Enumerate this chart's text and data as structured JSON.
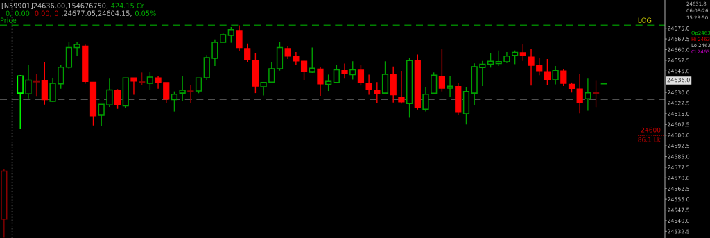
{
  "chart_data": {
    "type": "candlestick",
    "categories": [
      null,
      null,
      null,
      null,
      null,
      null,
      null,
      null,
      null,
      null,
      null,
      null,
      null,
      null,
      null,
      null,
      null,
      null,
      null,
      null,
      null,
      null,
      null,
      null,
      null,
      null,
      null,
      null,
      null,
      null,
      null,
      null,
      null,
      null,
      null,
      null,
      null,
      null,
      null,
      null,
      null,
      null,
      null,
      null,
      null,
      null,
      null,
      null,
      null,
      null,
      null,
      null,
      null,
      null,
      null,
      null,
      null,
      null,
      null,
      null,
      null,
      null,
      null,
      null,
      null,
      null,
      null,
      null,
      null,
      null,
      null,
      null,
      null,
      null,
      null,
      null,
      null,
      null,
      null,
      null,
      null,
      null
    ],
    "ohlc": [
      [
        24541.1,
        24576.5,
        24528,
        24574.8
      ],
      null,
      [
        24629.5,
        24642.1,
        24604.2,
        24641.6
      ],
      [
        24629.0,
        24649.0,
        24625.8,
        24638.6
      ],
      [
        24637.6,
        24642.9,
        24627.0,
        24637.4
      ],
      [
        24638.1,
        24651.0,
        24621.4,
        24625.0
      ],
      [
        24623.7,
        24640.0,
        24623.4,
        24636.4
      ],
      [
        24636.0,
        24649.0,
        24632.6,
        24647.7
      ],
      [
        24647.7,
        24665.4,
        24646.1,
        24661.5
      ],
      [
        24661.5,
        24665.1,
        24655.9,
        24663.6
      ],
      [
        24662.4,
        24663.5,
        24636.1,
        24637.7
      ],
      [
        24637.1,
        24637.1,
        24606.8,
        24613.6
      ],
      [
        24614.0,
        24621.7,
        24606.3,
        24621.7
      ],
      [
        24621.2,
        24639.6,
        24619.8,
        24631.8
      ],
      [
        24631.5,
        24632.3,
        24618.5,
        24621.2
      ],
      [
        24620.5,
        24640.1,
        24619.3,
        24640.1
      ],
      [
        24640.1,
        24640.1,
        24628.3,
        24638.0
      ],
      [
        24637.4,
        24644.0,
        24635.1,
        24637.0
      ],
      [
        24636.4,
        24644.2,
        24631.5,
        24640.8
      ],
      [
        24640.1,
        24641.7,
        24632.6,
        24637.2
      ],
      [
        24636.9,
        24636.9,
        24622.3,
        24625.3
      ],
      [
        24625.0,
        24630.7,
        24616.6,
        24628.7
      ],
      [
        24629.5,
        24641.6,
        24623.9,
        24631.5
      ],
      [
        24631.0,
        24635.2,
        24622.4,
        24630.7
      ],
      [
        24631.0,
        24640.1,
        24629.4,
        24640.1
      ],
      [
        24640.3,
        24656.2,
        24638.3,
        24654.4
      ],
      [
        24653.9,
        24667.2,
        24648.5,
        24665.1
      ],
      [
        24665.1,
        24671.6,
        24665.1,
        24670.5
      ],
      [
        24670.0,
        24675.8,
        24664.8,
        24674.0
      ],
      [
        24673.4,
        24677.05,
        24659.1,
        24661.5
      ],
      [
        24660.7,
        24664.3,
        24651.3,
        24652.9
      ],
      [
        24652.1,
        24657.5,
        24629.5,
        24634.4
      ],
      [
        24633.9,
        24637.0,
        24627.8,
        24637.0
      ],
      [
        24637.2,
        24651.5,
        24636.6,
        24646.6
      ],
      [
        24646.6,
        24665.1,
        24645.3,
        24661.4
      ],
      [
        24660.7,
        24662.7,
        24653.4,
        24655.5
      ],
      [
        24655.0,
        24658.3,
        24649.4,
        24652.1
      ],
      [
        24651.8,
        24652.1,
        24638.8,
        24644.5
      ],
      [
        24644.2,
        24661.5,
        24643.7,
        24646.9
      ],
      [
        24646.4,
        24647.7,
        24627.4,
        24636.0
      ],
      [
        24635.6,
        24642.5,
        24631.0,
        24637.7
      ],
      [
        24637.0,
        24649.4,
        24637.0,
        24645.9
      ],
      [
        24645.3,
        24650.2,
        24639.6,
        24643.4
      ],
      [
        24642.5,
        24651.8,
        24639.1,
        24645.9
      ],
      [
        24645.6,
        24649.0,
        24634.8,
        24636.8
      ],
      [
        24636.0,
        24642.4,
        24628.3,
        24632.0
      ],
      [
        24631.5,
        24637.2,
        24622.6,
        24629.5
      ],
      [
        24629.5,
        24651.8,
        24628.7,
        24642.7
      ],
      [
        24642.4,
        24648.2,
        24622.9,
        24628.3
      ],
      [
        24626.3,
        24644.8,
        24622.1,
        24623.4
      ],
      [
        24622.1,
        24653.9,
        24612.3,
        24652.3
      ],
      [
        24652.1,
        24656.6,
        24618.0,
        24619.3
      ],
      [
        24618.2,
        24633.9,
        24616.6,
        24628.7
      ],
      [
        24629.4,
        24644.0,
        24629.4,
        24642.1
      ],
      [
        24641.3,
        24660.2,
        24630.7,
        24633.0
      ],
      [
        24633.0,
        24641.7,
        24626.6,
        24634.3
      ],
      [
        24634.0,
        24636.7,
        24614.0,
        24616.1
      ],
      [
        24614.9,
        24633.6,
        24607.5,
        24630.7
      ],
      [
        24629.5,
        24650.4,
        24621.3,
        24648.0
      ],
      [
        24647.4,
        24652.1,
        24634.4,
        24649.7
      ],
      [
        24649.7,
        24657.5,
        24647.4,
        24651.8
      ],
      [
        24650.2,
        24659.4,
        24648.6,
        24651.6
      ],
      [
        24651.5,
        24658.3,
        24650.6,
        24655.5
      ],
      [
        24656.0,
        24659.4,
        24649.8,
        24658.0
      ],
      [
        24657.8,
        24663.6,
        24652.1,
        24655.8
      ],
      [
        24654.7,
        24660.4,
        24634.8,
        24649.0
      ],
      [
        24648.9,
        24654.2,
        24642.1,
        24644.8
      ],
      [
        24644.0,
        24653.4,
        24635.4,
        24639.1
      ],
      [
        24638.8,
        24648.5,
        24635.6,
        24645.3
      ],
      [
        24645.0,
        24646.6,
        24634.4,
        24636.4
      ],
      [
        24635.6,
        24636.9,
        24629.9,
        24632.8
      ],
      [
        24632.3,
        24642.9,
        24615.3,
        24622.9
      ],
      [
        24625.5,
        24639.6,
        24617.2,
        24629.7
      ],
      [
        24629.7,
        24638.1,
        24619.7,
        24629.4
      ],
      [
        24636.0,
        24636.0,
        24636.0,
        24636.0
      ],
      null,
      null,
      null,
      null,
      null,
      null,
      null
    ],
    "colors": [
      "#8b0000",
      null,
      "#00ff00",
      "#00a000",
      "#8b0000",
      "#ff0000",
      "#00a000",
      "#00a000",
      "#00a000",
      "#00a000",
      "#ff0000",
      "#ff0000",
      "#00a000",
      "#00a000",
      "#ff0000",
      "#00a000",
      "#ff0000",
      "#8b0000",
      "#00a000",
      "#ff0000",
      "#ff0000",
      "#00a000",
      "#00a000",
      "#8b0000",
      "#00a000",
      "#00a000",
      "#00a000",
      "#00a000",
      "#00a000",
      "#ff0000",
      "#ff0000",
      "#ff0000",
      "#00a000",
      "#00a000",
      "#00a000",
      "#ff0000",
      "#ff0000",
      "#ff0000",
      "#00a000",
      "#ff0000",
      "#00a000",
      "#00a000",
      "#ff0000",
      "#00a000",
      "#ff0000",
      "#ff0000",
      "#ff0000",
      "#00a000",
      "#ff0000",
      "#ff0000",
      "#00a000",
      "#ff0000",
      "#00a000",
      "#00a000",
      "#ff0000",
      "#00a000",
      "#ff0000",
      "#00a000",
      "#00a000",
      "#00a000",
      "#00a000",
      "#00a000",
      "#00a000",
      "#00a000",
      "#ff0000",
      "#ff0000",
      "#ff0000",
      "#ff0000",
      "#00a000",
      "#ff0000",
      "#ff0000",
      "#ff0000",
      "#00a000",
      "#8b0000",
      "#00a000",
      null,
      null,
      null,
      null,
      null,
      null,
      null
    ],
    "ylim": [
      24527.8,
      24694.8
    ],
    "yticks": [
      {
        "value": 24532.5,
        "label": "24532.5"
      },
      {
        "value": 24540,
        "label": "24540.0"
      },
      {
        "value": 24547.5,
        "label": "24547.5"
      },
      {
        "value": 24555,
        "label": "24555.0"
      },
      {
        "value": 24562.5,
        "label": "24562.5"
      },
      {
        "value": 24570,
        "label": "24570.0"
      },
      {
        "value": 24577.5,
        "label": "24577.5"
      },
      {
        "value": 24585,
        "label": "24585.0"
      },
      {
        "value": 24592.5,
        "label": "24592.5"
      },
      {
        "value": 24600,
        "label": "24600.0"
      },
      {
        "value": 24607.5,
        "label": "24607.5"
      },
      {
        "value": 24615,
        "label": "24615.0"
      },
      {
        "value": 24622.5,
        "label": "24622.5"
      },
      {
        "value": 24630,
        "label": "24630.0"
      },
      {
        "value": 24645,
        "label": "24645.0"
      },
      {
        "value": 24652.5,
        "label": "24652.5"
      },
      {
        "value": 24660,
        "label": "24660.0"
      },
      {
        "value": 24667.5,
        "label": "24667.5"
      },
      {
        "value": 24675,
        "label": "24675.0"
      }
    ],
    "tick_labels": "y",
    "grid": false,
    "ref_lines": [
      {
        "axis": "y",
        "value": 24677.05,
        "color": "#008000",
        "line_style": "dashed"
      },
      {
        "axis": "y",
        "value": 24625.3,
        "color": "#a0a0a0",
        "line_style": "dashed"
      }
    ],
    "annotations": [
      "[N59901]24636.00,154676750,",
      "424.15 Cr",
      "0,",
      "0.00:",
      "0.00,",
      "0",
      ",24677.05,24604.15,",
      "0.05%",
      "Price",
      "LOG",
      "24631.8",
      "06-08-26",
      "15:28:50",
      "Op2463",
      "Hi 2463",
      "Lo 2463",
      "Cl 2463",
      "24636.0",
      "24600",
      "86.1 Lk"
    ]
  }
}
